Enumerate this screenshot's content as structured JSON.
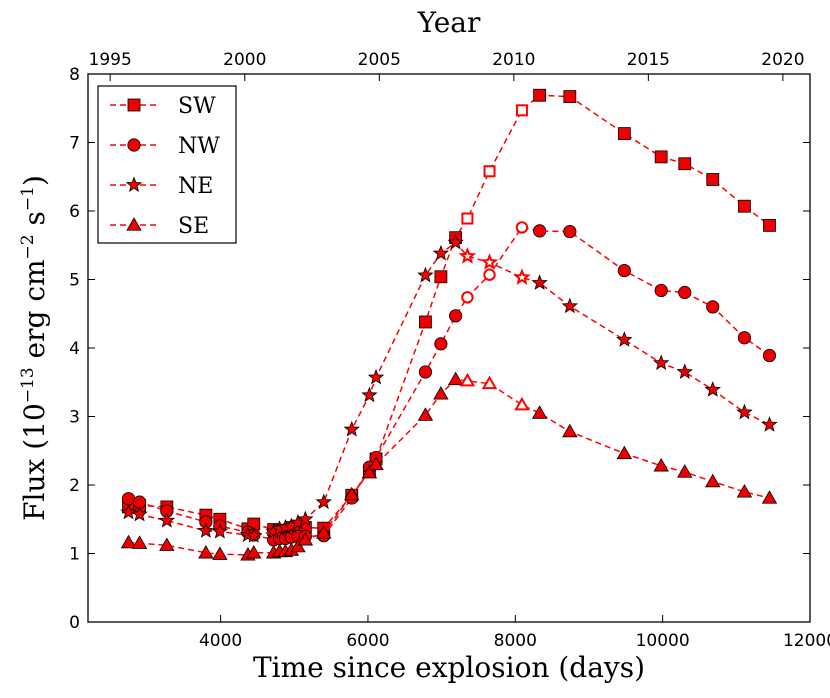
{
  "chart_data": {
    "type": "line",
    "xlabel": "Time since explosion (days)",
    "ylabel": "Flux  (10",
    "ylabel_exp1": "−13",
    "ylabel_mid": "  erg cm",
    "ylabel_exp2": "−2",
    "ylabel_mid2": " s",
    "ylabel_exp3": "−1",
    "ylabel_end": ")",
    "top_xlabel": "Year",
    "xlim": [
      2200,
      12000
    ],
    "ylim": [
      0,
      8
    ],
    "x_ticks": [
      4000,
      6000,
      8000,
      10000,
      12000
    ],
    "y_ticks": [
      0,
      1,
      2,
      3,
      4,
      5,
      6,
      7,
      8
    ],
    "top_ticks": [
      {
        "label": "1995",
        "day": 2501
      },
      {
        "label": "2000",
        "day": 4328
      },
      {
        "label": "2005",
        "day": 6154
      },
      {
        "label": "2010",
        "day": 7980
      },
      {
        "label": "2015",
        "day": 9806
      },
      {
        "label": "2020",
        "day": 11632
      }
    ],
    "line_color": "#ff0000",
    "marker_fill": "#ee0000",
    "legend_position": "upper-left",
    "series": [
      {
        "name": "SW",
        "marker": "square",
        "points": [
          [
            2750,
            1.68,
            1
          ],
          [
            2900,
            1.7,
            1
          ],
          [
            3270,
            1.68,
            1
          ],
          [
            3800,
            1.56,
            1
          ],
          [
            3990,
            1.5,
            1
          ],
          [
            4370,
            1.36,
            1
          ],
          [
            4450,
            1.43,
            1
          ],
          [
            4720,
            1.35,
            1
          ],
          [
            4800,
            1.33,
            1
          ],
          [
            4880,
            1.34,
            1
          ],
          [
            4960,
            1.38,
            1
          ],
          [
            5050,
            1.4,
            1
          ],
          [
            5150,
            1.38,
            1
          ],
          [
            5400,
            1.37,
            1
          ],
          [
            5780,
            1.85,
            1
          ],
          [
            6020,
            2.2,
            1
          ],
          [
            6110,
            2.38,
            1
          ],
          [
            6780,
            4.38,
            1
          ],
          [
            6990,
            5.04,
            1
          ],
          [
            7190,
            5.61,
            1
          ],
          [
            7350,
            5.89,
            0
          ],
          [
            7650,
            6.58,
            0
          ],
          [
            8090,
            7.47,
            0
          ],
          [
            8330,
            7.69,
            1
          ],
          [
            8740,
            7.67,
            1
          ],
          [
            9480,
            7.13,
            1
          ],
          [
            9980,
            6.79,
            1
          ],
          [
            10300,
            6.69,
            1
          ],
          [
            10680,
            6.46,
            1
          ],
          [
            11110,
            6.07,
            1
          ],
          [
            11450,
            5.79,
            1
          ]
        ]
      },
      {
        "name": "NW",
        "marker": "circle",
        "points": [
          [
            2750,
            1.8,
            1
          ],
          [
            2900,
            1.75,
            1
          ],
          [
            3270,
            1.62,
            1
          ],
          [
            3800,
            1.46,
            1
          ],
          [
            3990,
            1.4,
            1
          ],
          [
            4370,
            1.31,
            1
          ],
          [
            4450,
            1.27,
            1
          ],
          [
            4720,
            1.2,
            1
          ],
          [
            4800,
            1.22,
            1
          ],
          [
            4880,
            1.22,
            1
          ],
          [
            4960,
            1.24,
            1
          ],
          [
            5050,
            1.25,
            1
          ],
          [
            5150,
            1.25,
            1
          ],
          [
            5400,
            1.26,
            1
          ],
          [
            5780,
            1.81,
            1
          ],
          [
            6020,
            2.26,
            1
          ],
          [
            6110,
            2.4,
            1
          ],
          [
            6780,
            3.65,
            1
          ],
          [
            6990,
            4.06,
            1
          ],
          [
            7190,
            4.47,
            1
          ],
          [
            7350,
            4.74,
            0
          ],
          [
            7650,
            5.07,
            0
          ],
          [
            8090,
            5.76,
            0
          ],
          [
            8330,
            5.71,
            1
          ],
          [
            8740,
            5.7,
            1
          ],
          [
            9480,
            5.13,
            1
          ],
          [
            9980,
            4.84,
            1
          ],
          [
            10300,
            4.81,
            1
          ],
          [
            10680,
            4.6,
            1
          ],
          [
            11110,
            4.15,
            1
          ],
          [
            11450,
            3.89,
            1
          ]
        ]
      },
      {
        "name": "NE",
        "marker": "star",
        "points": [
          [
            2750,
            1.6,
            1
          ],
          [
            2900,
            1.57,
            1
          ],
          [
            3270,
            1.48,
            1
          ],
          [
            3800,
            1.33,
            1
          ],
          [
            3990,
            1.32,
            1
          ],
          [
            4370,
            1.27,
            1
          ],
          [
            4450,
            1.26,
            1
          ],
          [
            4720,
            1.32,
            1
          ],
          [
            4800,
            1.36,
            1
          ],
          [
            4880,
            1.38,
            1
          ],
          [
            4960,
            1.4,
            1
          ],
          [
            5050,
            1.45,
            1
          ],
          [
            5150,
            1.5,
            1
          ],
          [
            5400,
            1.75,
            1
          ],
          [
            5780,
            2.81,
            1
          ],
          [
            6020,
            3.31,
            1
          ],
          [
            6110,
            3.57,
            1
          ],
          [
            6780,
            5.06,
            1
          ],
          [
            6990,
            5.38,
            1
          ],
          [
            7190,
            5.54,
            1
          ],
          [
            7350,
            5.34,
            0
          ],
          [
            7650,
            5.25,
            0
          ],
          [
            8090,
            5.03,
            0
          ],
          [
            8330,
            4.95,
            1
          ],
          [
            8740,
            4.61,
            1
          ],
          [
            9480,
            4.12,
            1
          ],
          [
            9980,
            3.78,
            1
          ],
          [
            10300,
            3.65,
            1
          ],
          [
            10680,
            3.39,
            1
          ],
          [
            11110,
            3.06,
            1
          ],
          [
            11450,
            2.88,
            1
          ]
        ]
      },
      {
        "name": "SE",
        "marker": "triangle",
        "points": [
          [
            2750,
            1.16,
            1
          ],
          [
            2900,
            1.15,
            1
          ],
          [
            3270,
            1.12,
            1
          ],
          [
            3800,
            1.01,
            1
          ],
          [
            3990,
            0.99,
            1
          ],
          [
            4370,
            0.98,
            1
          ],
          [
            4450,
            1.01,
            1
          ],
          [
            4720,
            1.01,
            1
          ],
          [
            4800,
            1.03,
            1
          ],
          [
            4880,
            1.03,
            1
          ],
          [
            4960,
            1.05,
            1
          ],
          [
            5050,
            1.1,
            1
          ],
          [
            5150,
            1.2,
            1
          ],
          [
            5400,
            1.3,
            1
          ],
          [
            5780,
            1.86,
            1
          ],
          [
            6020,
            2.18,
            1
          ],
          [
            6110,
            2.3,
            1
          ],
          [
            6780,
            3.02,
            1
          ],
          [
            6990,
            3.33,
            1
          ],
          [
            7190,
            3.54,
            1
          ],
          [
            7350,
            3.52,
            0
          ],
          [
            7650,
            3.48,
            0
          ],
          [
            8090,
            3.17,
            0
          ],
          [
            8330,
            3.05,
            1
          ],
          [
            8740,
            2.78,
            1
          ],
          [
            9480,
            2.46,
            1
          ],
          [
            9980,
            2.28,
            1
          ],
          [
            10300,
            2.19,
            1
          ],
          [
            10680,
            2.05,
            1
          ],
          [
            11110,
            1.9,
            1
          ],
          [
            11450,
            1.81,
            1
          ]
        ]
      }
    ]
  }
}
